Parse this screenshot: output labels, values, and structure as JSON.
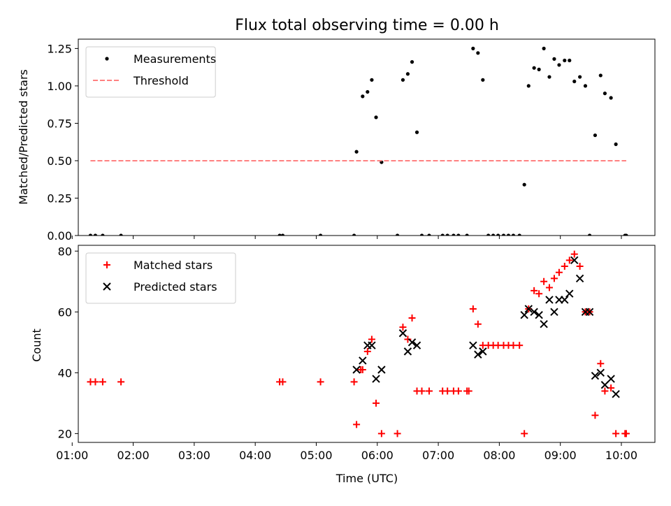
{
  "chart_data": [
    {
      "type": "scatter",
      "title": "Flux total observing time = 0.00 h",
      "ylabel": "Matched/Predicted stars",
      "xlabel": "",
      "xlim": [
        1.1,
        10.55
      ],
      "ylim": [
        0,
        1.3125
      ],
      "yticks": [
        0.0,
        0.25,
        0.5,
        0.75,
        1.0,
        1.25
      ],
      "ytick_labels": [
        "0.00",
        "0.25",
        "0.50",
        "0.75",
        "1.00",
        "1.25"
      ],
      "xticks": [
        1,
        2,
        3,
        4,
        5,
        6,
        7,
        8,
        9,
        10
      ],
      "xtick_labels_shown": false,
      "legend": {
        "placement": "top-left"
      },
      "series": [
        {
          "name": "Measurements",
          "marker": "dot",
          "color": "#000000",
          "x": [
            1.3,
            1.38,
            1.5,
            1.8,
            4.4,
            4.45,
            5.07,
            5.62,
            5.66,
            5.76,
            5.84,
            5.91,
            5.98,
            6.07,
            6.33,
            6.42,
            6.5,
            6.57,
            6.65,
            6.73,
            6.85,
            7.07,
            7.15,
            7.25,
            7.33,
            7.47,
            7.57,
            7.65,
            7.73,
            7.82,
            7.9,
            7.98,
            8.07,
            8.15,
            8.23,
            8.33,
            8.41,
            8.48,
            8.57,
            8.65,
            8.73,
            8.82,
            8.9,
            8.98,
            9.07,
            9.15,
            9.23,
            9.32,
            9.41,
            9.48,
            9.57,
            9.66,
            9.73,
            9.83,
            9.91,
            10.06,
            10.08
          ],
          "y": [
            0,
            0,
            0,
            0,
            0,
            0,
            0,
            0,
            0.56,
            0.93,
            0.96,
            1.04,
            0.79,
            0.49,
            0,
            1.04,
            1.08,
            1.16,
            0.69,
            0,
            0,
            0,
            0,
            0,
            0,
            0,
            1.25,
            1.22,
            1.04,
            0,
            0,
            0,
            0,
            0,
            0,
            0,
            0.34,
            1.0,
            1.12,
            1.11,
            1.25,
            1.06,
            1.18,
            1.14,
            1.17,
            1.17,
            1.03,
            1.06,
            1.0,
            0,
            0.67,
            1.07,
            0.95,
            0.92,
            0.61,
            0,
            0
          ]
        },
        {
          "name": "Threshold",
          "marker": "dashed-line",
          "color": "#ff8080",
          "x": [
            1.3,
            10.08
          ],
          "y": [
            0.5,
            0.5
          ]
        }
      ]
    },
    {
      "type": "scatter",
      "title": "",
      "ylabel": "Count",
      "xlabel": "Time (UTC)",
      "xlim": [
        1.1,
        10.55
      ],
      "ylim": [
        17.1,
        81.9
      ],
      "yticks": [
        20,
        40,
        60,
        80
      ],
      "ytick_labels": [
        "20",
        "40",
        "60",
        "80"
      ],
      "xticks": [
        1,
        2,
        3,
        4,
        5,
        6,
        7,
        8,
        9,
        10
      ],
      "xtick_labels": [
        "01:00",
        "02:00",
        "03:00",
        "04:00",
        "05:00",
        "06:00",
        "07:00",
        "08:00",
        "09:00",
        "10:00"
      ],
      "legend": {
        "placement": "top-left"
      },
      "series": [
        {
          "name": "Matched stars",
          "marker": "plus",
          "color": "#ff0000",
          "x": [
            1.3,
            1.38,
            1.5,
            1.8,
            4.4,
            4.45,
            5.07,
            5.62,
            5.66,
            5.73,
            5.76,
            5.84,
            5.91,
            5.98,
            6.07,
            6.33,
            6.42,
            6.5,
            6.57,
            6.65,
            6.73,
            6.85,
            7.07,
            7.15,
            7.25,
            7.33,
            7.47,
            7.5,
            7.57,
            7.65,
            7.73,
            7.82,
            7.9,
            7.98,
            8.07,
            8.15,
            8.23,
            8.33,
            8.41,
            8.48,
            8.57,
            8.65,
            8.73,
            8.82,
            8.9,
            8.98,
            9.07,
            9.15,
            9.23,
            9.32,
            9.41,
            9.48,
            9.57,
            9.66,
            9.73,
            9.83,
            9.91,
            10.06,
            10.08
          ],
          "y": [
            37,
            37,
            37,
            37,
            37,
            37,
            37,
            37,
            23,
            41,
            41,
            47,
            51,
            30,
            20,
            20,
            55,
            51,
            58,
            34,
            34,
            34,
            34,
            34,
            34,
            34,
            34,
            34,
            61,
            56,
            49,
            49,
            49,
            49,
            49,
            49,
            49,
            49,
            20,
            61,
            67,
            66,
            70,
            68,
            71,
            73,
            75,
            77,
            79,
            75,
            60,
            60,
            26,
            43,
            34,
            35,
            20,
            20,
            20
          ]
        },
        {
          "name": "Predicted stars",
          "marker": "x",
          "color": "#000000",
          "x": [
            5.66,
            5.76,
            5.84,
            5.91,
            5.98,
            6.07,
            6.42,
            6.5,
            6.57,
            6.65,
            7.57,
            7.65,
            7.73,
            8.41,
            8.48,
            8.57,
            8.65,
            8.73,
            8.82,
            8.9,
            8.98,
            9.07,
            9.15,
            9.23,
            9.32,
            9.41,
            9.48,
            9.57,
            9.66,
            9.73,
            9.83,
            9.91
          ],
          "y": [
            41,
            44,
            49,
            49,
            38,
            41,
            53,
            47,
            50,
            49,
            49,
            46,
            47,
            59,
            61,
            60,
            59,
            56,
            64,
            60,
            64,
            64,
            66,
            77,
            71,
            60,
            60,
            39,
            40,
            36,
            38,
            33
          ]
        }
      ]
    }
  ]
}
